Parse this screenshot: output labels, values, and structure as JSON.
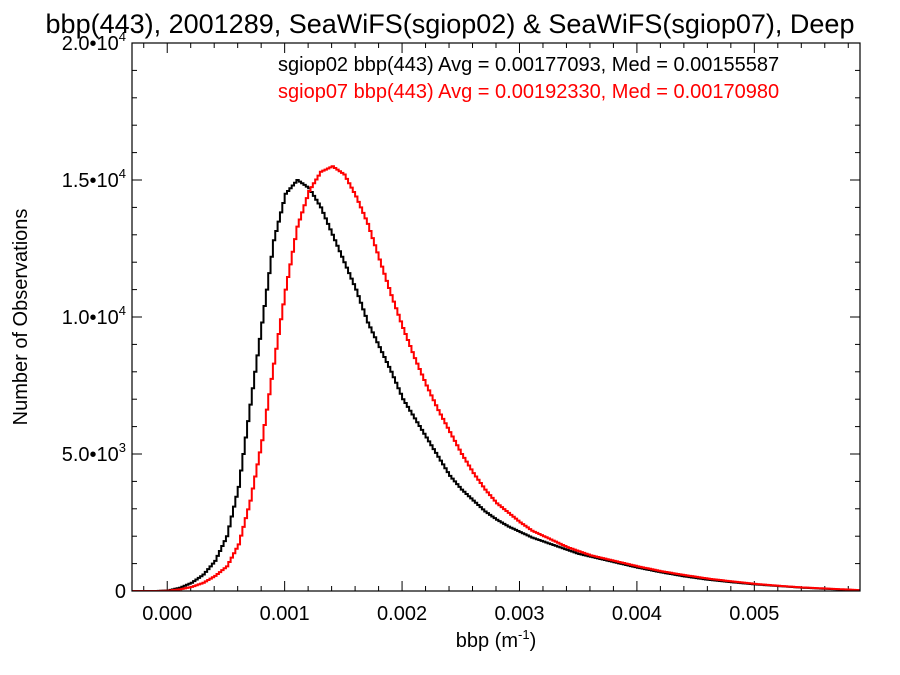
{
  "chart_data": {
    "type": "line",
    "title": "bbp(443), 2001289, SeaWiFS(sgiop02) & SeaWiFS(sgiop07), Deep",
    "xlabel": "bbp (m",
    "xlabel_sup": "-1",
    "xlabel_close": ")",
    "ylabel": "Number of Observations",
    "xlim": [
      -0.0003,
      0.0059
    ],
    "ylim": [
      0,
      20000
    ],
    "x_ticks": [
      0.0,
      0.001,
      0.002,
      0.003,
      0.004,
      0.005
    ],
    "x_tick_labels": [
      "0.000",
      "0.001",
      "0.002",
      "0.003",
      "0.004",
      "0.005"
    ],
    "y_ticks": [
      {
        "value": 0,
        "mantissa": "0",
        "exp": ""
      },
      {
        "value": 5000,
        "mantissa": "5.0•10",
        "exp": "3"
      },
      {
        "value": 10000,
        "mantissa": "1.0•10",
        "exp": "4"
      },
      {
        "value": 15000,
        "mantissa": "1.5•10",
        "exp": "4"
      },
      {
        "value": 20000,
        "mantissa": "2.0•10",
        "exp": "4"
      }
    ],
    "series": [
      {
        "name": "sgiop02 bbp(443) Avg = 0.00177093, Med = 0.00155587",
        "color": "#000000",
        "x": [
          -0.0003,
          -0.0001,
          0.0,
          0.0001,
          0.0002,
          0.0003,
          0.0004,
          0.0005,
          0.0006,
          0.0007,
          0.0008,
          0.0009,
          0.001,
          0.0011,
          0.0012,
          0.0013,
          0.0014,
          0.0015,
          0.0016,
          0.0017,
          0.0018,
          0.0019,
          0.002,
          0.0021,
          0.0022,
          0.0023,
          0.0024,
          0.0025,
          0.0026,
          0.0027,
          0.0028,
          0.0029,
          0.003,
          0.0031,
          0.0032,
          0.0033,
          0.0034,
          0.0035,
          0.0036,
          0.0038,
          0.004,
          0.0042,
          0.0044,
          0.0046,
          0.0048,
          0.005,
          0.0052,
          0.0054,
          0.0056,
          0.0058,
          0.0059
        ],
        "y": [
          0,
          0,
          20,
          120,
          300,
          600,
          1100,
          2000,
          3800,
          6800,
          9800,
          12800,
          14500,
          15000,
          14700,
          14000,
          13000,
          12000,
          11000,
          9800,
          8900,
          8000,
          7000,
          6300,
          5600,
          4900,
          4200,
          3700,
          3300,
          2900,
          2600,
          2350,
          2150,
          1950,
          1800,
          1650,
          1500,
          1350,
          1250,
          1050,
          850,
          680,
          530,
          410,
          320,
          240,
          180,
          120,
          80,
          40,
          20
        ]
      },
      {
        "name": "sgiop07 bbp(443) Avg = 0.00192330, Med = 0.00170980",
        "color": "#ff0000",
        "x": [
          -0.0003,
          -0.0001,
          0.0,
          0.0001,
          0.0002,
          0.0003,
          0.0004,
          0.0005,
          0.0006,
          0.0007,
          0.0008,
          0.0009,
          0.001,
          0.0011,
          0.0012,
          0.0013,
          0.0014,
          0.0015,
          0.0016,
          0.0017,
          0.0018,
          0.0019,
          0.002,
          0.0021,
          0.0022,
          0.0023,
          0.0024,
          0.0025,
          0.0026,
          0.0027,
          0.0028,
          0.0029,
          0.003,
          0.0031,
          0.0032,
          0.0033,
          0.0034,
          0.0035,
          0.0036,
          0.0038,
          0.004,
          0.0042,
          0.0044,
          0.0046,
          0.0048,
          0.005,
          0.0052,
          0.0054,
          0.0056,
          0.0058,
          0.0059
        ],
        "y": [
          0,
          0,
          10,
          60,
          150,
          300,
          550,
          900,
          1700,
          3300,
          5500,
          8300,
          11000,
          13300,
          14600,
          15300,
          15500,
          15200,
          14400,
          13400,
          12100,
          10800,
          9600,
          8500,
          7500,
          6600,
          5800,
          5000,
          4300,
          3700,
          3200,
          2850,
          2500,
          2200,
          2000,
          1800,
          1600,
          1450,
          1300,
          1100,
          900,
          720,
          580,
          450,
          350,
          260,
          190,
          130,
          90,
          50,
          25
        ]
      }
    ],
    "legend_placement": "top-right"
  }
}
